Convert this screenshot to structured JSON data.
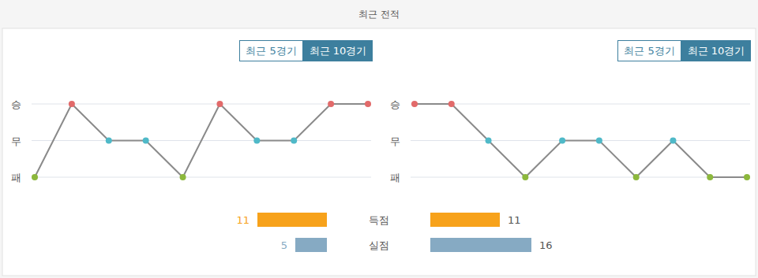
{
  "title": "최근 전적",
  "buttons": [
    "최근 5경기",
    "최근 10경기"
  ],
  "chart_data": [
    {
      "type": "line",
      "categories": [
        null,
        null,
        null,
        null,
        null,
        null,
        null,
        null,
        null,
        null
      ],
      "series": [
        {
          "color": "#8a8a8a",
          "marker": "circle",
          "colors": [
            "#8cb83c",
            "#e26a6a",
            "#4fb9c8",
            "#4fb9c8",
            "#8cb83c",
            "#e26a6a",
            "#4fb9c8",
            "#4fb9c8",
            "#e26a6a",
            "#e26a6a"
          ],
          "values": [
            -1,
            1,
            0,
            0,
            -1,
            1,
            0,
            0,
            1,
            1
          ]
        }
      ],
      "ylim": [
        -1,
        1
      ],
      "yticks": [
        {
          "value": 1,
          "label": "승"
        },
        {
          "value": 0,
          "label": "무"
        },
        {
          "value": -1,
          "label": "패"
        }
      ],
      "grid": true,
      "tick_labels": "y"
    },
    {
      "type": "line",
      "categories": [
        null,
        null,
        null,
        null,
        null,
        null,
        null,
        null,
        null,
        null
      ],
      "series": [
        {
          "color": "#8a8a8a",
          "marker": "circle",
          "colors": [
            "#e26a6a",
            "#e26a6a",
            "#4fb9c8",
            "#8cb83c",
            "#4fb9c8",
            "#4fb9c8",
            "#8cb83c",
            "#4fb9c8",
            "#8cb83c",
            "#8cb83c"
          ],
          "values": [
            1,
            1,
            0,
            -1,
            0,
            0,
            -1,
            0,
            -1,
            -1
          ]
        }
      ],
      "ylim": [
        -1,
        1
      ],
      "yticks": [
        {
          "value": 1,
          "label": "승"
        },
        {
          "value": 0,
          "label": "무"
        },
        {
          "value": -1,
          "label": "패"
        }
      ],
      "grid": true,
      "tick_labels": "y"
    },
    {
      "type": "bar",
      "orientation": "horizontal",
      "categories": [
        "득점",
        "실점"
      ],
      "series": [
        {
          "colors": [
            "#f7a21b",
            "#86aac3"
          ],
          "values": [
            11,
            5
          ]
        },
        {
          "colors": [
            "#f7a21b",
            "#86aac3"
          ],
          "values": [
            11,
            16
          ]
        }
      ],
      "xlim": [
        0,
        16
      ],
      "data_labels": true,
      "tick_labels": false
    }
  ]
}
